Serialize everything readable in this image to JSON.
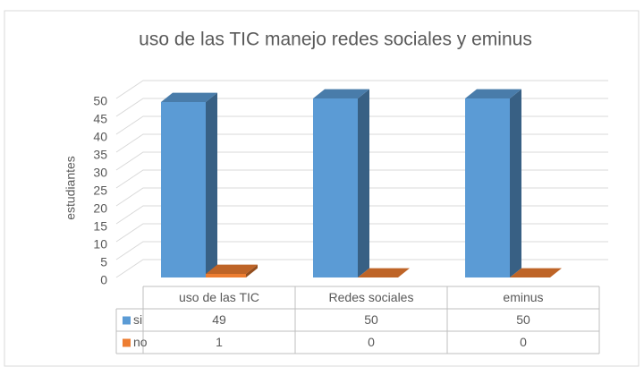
{
  "chart_data": {
    "type": "bar3d",
    "title": "uso de las TIC  manejo redes sociales y eminus",
    "y_label": "estudiantes",
    "categories": [
      "uso de las TIC",
      "Redes sociales",
      "eminus"
    ],
    "series": [
      {
        "name": "si",
        "color": "#5b9bd5",
        "values": [
          49,
          50,
          50
        ]
      },
      {
        "name": "no",
        "color": "#ed7d31",
        "values": [
          1,
          0,
          0
        ]
      }
    ],
    "ylim": [
      0,
      50
    ],
    "yticks": [
      0,
      5,
      10,
      15,
      20,
      25,
      30,
      35,
      40,
      45,
      50
    ],
    "grid": true
  }
}
